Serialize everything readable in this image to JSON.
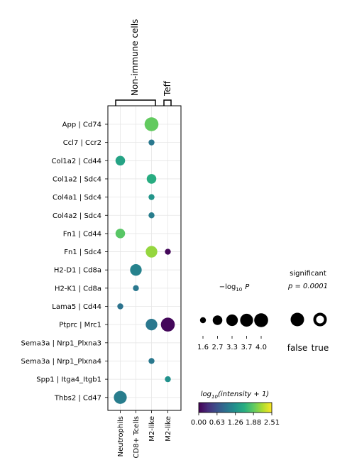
{
  "chart_data": {
    "type": "scatter",
    "groups": [
      {
        "label": "Non-immune cells",
        "columns": [
          "Neutrophils",
          "CD8+ Tcells",
          "M2-like"
        ]
      },
      {
        "label": "Teff",
        "columns": [
          "M2-like"
        ]
      }
    ],
    "columns": [
      "Neutrophils",
      "CD8+ Tcells",
      "M2-like",
      "M2-like"
    ],
    "rows": [
      "App | Cd74",
      "Ccl7 | Ccr2",
      "Col1a2 | Cd44",
      "Col1a2 | Sdc4",
      "Col4a1 | Sdc4",
      "Col4a2 | Sdc4",
      "Fn1 | Cd44",
      "Fn1 | Sdc4",
      "H2-D1 | Cd8a",
      "H2-K1 | Cd8a",
      "Lama5 | Cd44",
      "Ptprc | Mrc1",
      "Sema3a | Nrp1_Plxna3",
      "Sema3a | Nrp1_Plxna4",
      "Spp1 | Itga4_Itgb1",
      "Thbs2 | Cd47"
    ],
    "points": [
      {
        "row": 0,
        "col": 2,
        "intensity": 1.9,
        "neglog10p": 4.0,
        "significant": false
      },
      {
        "row": 1,
        "col": 2,
        "intensity": 1.0,
        "neglog10p": 1.6,
        "significant": false
      },
      {
        "row": 2,
        "col": 0,
        "intensity": 1.45,
        "neglog10p": 2.7,
        "significant": false
      },
      {
        "row": 3,
        "col": 2,
        "intensity": 1.55,
        "neglog10p": 2.7,
        "significant": false
      },
      {
        "row": 4,
        "col": 2,
        "intensity": 1.3,
        "neglog10p": 1.6,
        "significant": false
      },
      {
        "row": 5,
        "col": 2,
        "intensity": 1.05,
        "neglog10p": 1.6,
        "significant": false
      },
      {
        "row": 6,
        "col": 0,
        "intensity": 1.85,
        "neglog10p": 2.7,
        "significant": false
      },
      {
        "row": 7,
        "col": 2,
        "intensity": 2.1,
        "neglog10p": 3.3,
        "significant": false
      },
      {
        "row": 7,
        "col": 3,
        "intensity": 0.05,
        "neglog10p": 1.6,
        "significant": false
      },
      {
        "row": 8,
        "col": 1,
        "intensity": 1.1,
        "neglog10p": 3.3,
        "significant": false
      },
      {
        "row": 9,
        "col": 1,
        "intensity": 1.0,
        "neglog10p": 1.6,
        "significant": false
      },
      {
        "row": 10,
        "col": 0,
        "intensity": 0.95,
        "neglog10p": 1.6,
        "significant": false
      },
      {
        "row": 11,
        "col": 2,
        "intensity": 1.0,
        "neglog10p": 3.3,
        "significant": false
      },
      {
        "row": 11,
        "col": 3,
        "intensity": 0.05,
        "neglog10p": 4.0,
        "significant": false
      },
      {
        "row": 13,
        "col": 2,
        "intensity": 1.0,
        "neglog10p": 1.6,
        "significant": false
      },
      {
        "row": 14,
        "col": 3,
        "intensity": 1.25,
        "neglog10p": 1.6,
        "significant": false
      },
      {
        "row": 15,
        "col": 0,
        "intensity": 1.05,
        "neglog10p": 3.7,
        "significant": false
      }
    ],
    "size_legend": {
      "title_main": "−log",
      "title_sub": "10",
      "title_var": "P",
      "values": [
        1.6,
        2.7,
        3.3,
        3.7,
        4.0
      ],
      "labels": [
        "1.6",
        "2.7",
        "3.3",
        "3.7",
        "4.0"
      ]
    },
    "significance_legend": {
      "title_line1": "significant",
      "title_line2": "p = 0.0001",
      "labels": [
        "false",
        "true"
      ]
    },
    "colorbar": {
      "title": "log10(intensity + 1)",
      "title_fn": "log",
      "title_sub": "10",
      "title_args": "(intensity + 1)",
      "colormap": "viridis",
      "range": [
        0.0,
        2.51
      ],
      "ticks": [
        0.0,
        0.63,
        1.26,
        1.88,
        2.51
      ],
      "tick_labels": [
        "0.00",
        "0.63",
        "1.26",
        "1.88",
        "2.51"
      ]
    }
  }
}
